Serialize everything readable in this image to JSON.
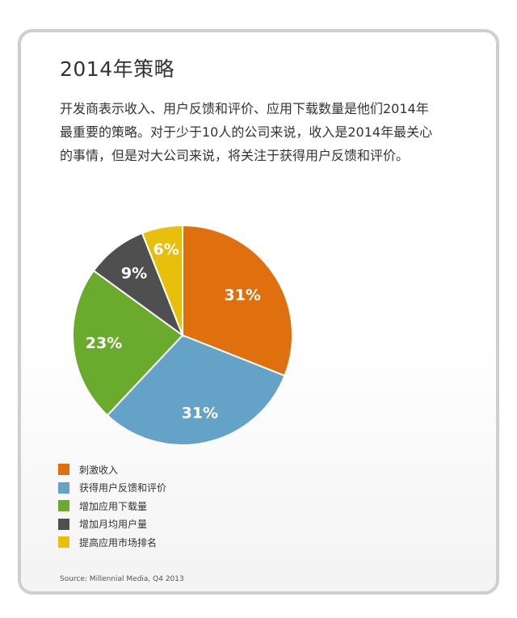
{
  "title": "2014年策略",
  "intro_lines": [
    "开发商表示收入、用户反馈和评价、应用下载数量是他们2014年",
    "最重要的策略。对于少于10人的公司来说，收入是2014年最关心",
    "的事情，但是对大公司来说，将关注于获得用户反馈和评价。"
  ],
  "source": "Source: Millennial Media, Q4 2013",
  "chart_data": {
    "type": "pie",
    "categories": [
      "刺激收入",
      "获得用户反馈和评价",
      "增加应用下载量",
      "增加月均用户量",
      "提高应用市场排名"
    ],
    "values": [
      31,
      31,
      23,
      9,
      6
    ],
    "labels": [
      "31%",
      "31%",
      "23%",
      "9%",
      "6%"
    ],
    "colors": [
      "#e06f0d",
      "#64a2c8",
      "#6aab2e",
      "#4f4f50",
      "#e8bf0b"
    ],
    "start": "12 o'clock",
    "direction": "clockwise",
    "legend_position": "bottom-left"
  }
}
